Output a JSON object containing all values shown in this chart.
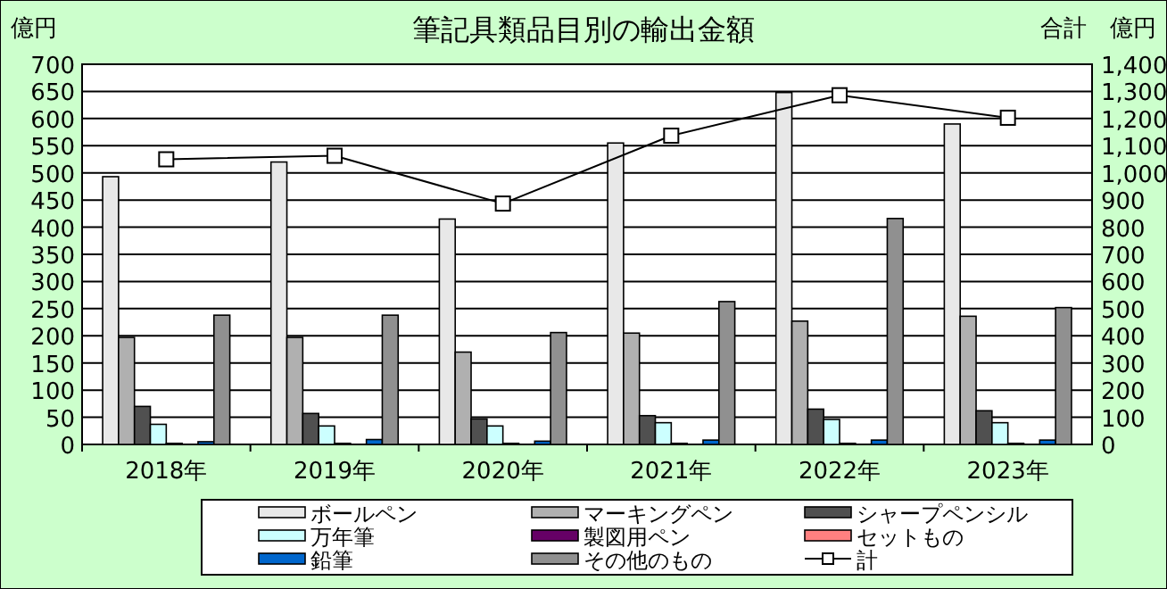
{
  "chart_data": {
    "type": "bar",
    "title": "筆記具類品目別の輸出金額",
    "ylabel": "億円",
    "y2label": "合計　億円",
    "categories": [
      "2018年",
      "2019年",
      "2020年",
      "2021年",
      "2022年",
      "2023年"
    ],
    "series": [
      {
        "name": "ボールペン",
        "color": "#e8e8e8",
        "values": [
          493,
          520,
          415,
          555,
          648,
          590
        ]
      },
      {
        "name": "マーキングペン",
        "color": "#b0b0b0",
        "values": [
          197,
          197,
          170,
          205,
          227,
          236
        ]
      },
      {
        "name": "シャープペンシル",
        "color": "#505050",
        "values": [
          70,
          57,
          47,
          53,
          65,
          62
        ]
      },
      {
        "name": "万年筆",
        "color": "#ccffff",
        "values": [
          37,
          34,
          34,
          40,
          46,
          40
        ]
      },
      {
        "name": "製図用ペン",
        "color": "#660066",
        "values": [
          2,
          2,
          2,
          2,
          2,
          2
        ]
      },
      {
        "name": "セットもの",
        "color": "#ff8080",
        "values": [
          0,
          0,
          0,
          0,
          0,
          0
        ]
      },
      {
        "name": "鉛筆",
        "color": "#0066cc",
        "values": [
          5,
          9,
          6,
          8,
          8,
          8
        ]
      },
      {
        "name": "その他のもの",
        "color": "#909090",
        "values": [
          238,
          238,
          206,
          263,
          416,
          252
        ]
      },
      {
        "name": "計",
        "type": "line",
        "axis": "y2",
        "color": "#000000",
        "marker": "square",
        "values": [
          1050,
          1063,
          887,
          1137,
          1286,
          1203
        ]
      }
    ],
    "ylim": [
      0,
      700
    ],
    "yticks": [
      0,
      50,
      100,
      150,
      200,
      250,
      300,
      350,
      400,
      450,
      500,
      550,
      600,
      650,
      700
    ],
    "y2lim": [
      0,
      1400
    ],
    "y2ticks": [
      0,
      {
        "value": 100,
        "label": "100"
      },
      200,
      300,
      400,
      500,
      600,
      700,
      800,
      900,
      {
        "value": 1000,
        "label": "1,000"
      },
      {
        "value": 1100,
        "label": "1,100"
      },
      {
        "value": 1200,
        "label": "1,200"
      },
      {
        "value": 1300,
        "label": "1,300"
      },
      {
        "value": 1400,
        "label": "1,400"
      }
    ],
    "grid": "y",
    "legend": "bottom"
  }
}
